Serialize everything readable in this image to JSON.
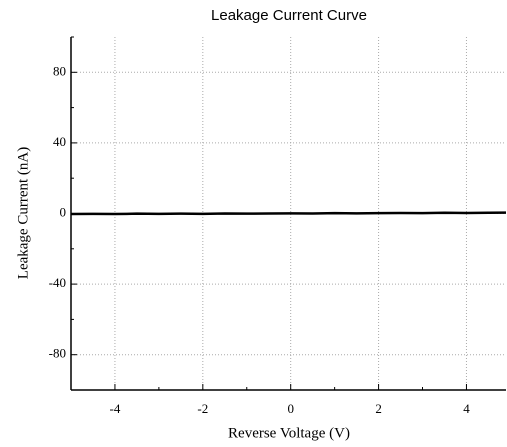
{
  "chart_data": {
    "type": "line",
    "title": "Leakage Current Curve",
    "x_label": "Reverse Voltage (V)",
    "y_label": "Leakage Current (nA)",
    "x": [
      -5,
      -4.5,
      -4,
      -3.5,
      -3,
      -2.5,
      -2,
      -1.5,
      -1,
      -0.5,
      0,
      0.5,
      1,
      1.5,
      2,
      2.5,
      3,
      3.5,
      4,
      4.5,
      4.9
    ],
    "series": [
      {
        "name": "Leakage Current",
        "color": "#000000",
        "values": [
          -0.3,
          -0.2,
          -0.3,
          -0.1,
          -0.2,
          -0.1,
          -0.2,
          0,
          -0.1,
          0,
          0.1,
          0,
          0.2,
          0.1,
          0.2,
          0.3,
          0.2,
          0.4,
          0.3,
          0.4,
          0.5
        ]
      }
    ],
    "xlim": [
      -5,
      4.9
    ],
    "xticks": [
      -4,
      -2,
      0,
      2,
      4
    ],
    "xminorticks": [
      -5,
      -3,
      -1,
      1,
      3
    ],
    "ylim": [
      -100,
      100
    ],
    "yticks": [
      -80,
      -40,
      0,
      40,
      80
    ],
    "yminorticks": [
      -100,
      -60,
      -20,
      20,
      60,
      100
    ],
    "grid": true
  }
}
